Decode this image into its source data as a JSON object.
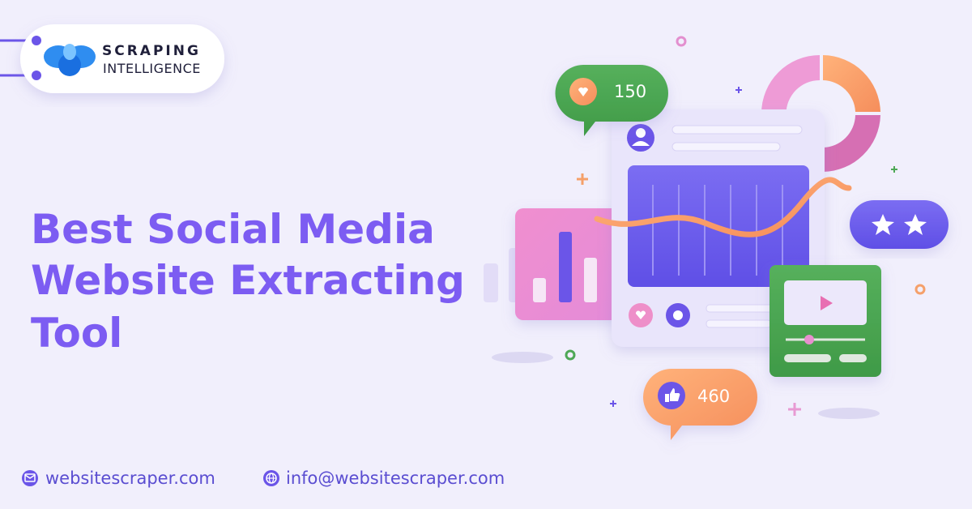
{
  "logo": {
    "line1": "SCRAPING",
    "line2": "INTELLIGENCE"
  },
  "headline": {
    "lines": [
      "Best Social Media",
      "Website Extracting",
      "Tool"
    ]
  },
  "badges": {
    "likes": 150,
    "thumbs": 460
  },
  "footer": {
    "website": "websitescraper.com",
    "email": "info@websitescraper.com"
  }
}
